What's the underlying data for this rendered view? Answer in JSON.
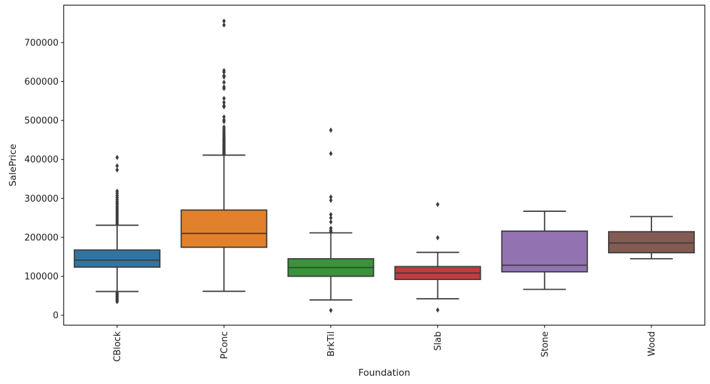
{
  "figure": {
    "background": "#ffffff"
  },
  "chart_data": {
    "type": "boxplot",
    "title": "",
    "xlabel": "Foundation",
    "ylabel": "SalePrice",
    "categories": [
      "CBlock",
      "PConc",
      "BrkTil",
      "Slab",
      "Stone",
      "Wood"
    ],
    "yticks": [
      0,
      100000,
      200000,
      300000,
      400000,
      500000,
      600000,
      700000
    ],
    "ylim": [
      -25400,
      795900
    ],
    "grid": false,
    "legend": "none",
    "colors": {
      "spine": "#2b2b2b",
      "box_edge": "#3d3d3d",
      "flier": "#3d3d3d",
      "text": "#1a1a1a",
      "background": "#ffffff"
    },
    "boxes": [
      {
        "category": "CBlock",
        "color": "#3274a1",
        "q1": 123500,
        "median": 141500,
        "q3": 167500,
        "whisker_low": 61000,
        "whisker_high": 231000,
        "outliers": [
          34900,
          37900,
          40500,
          43500,
          46500,
          49500,
          52500,
          55000,
          57500,
          235000,
          239000,
          243000,
          247000,
          251000,
          255000,
          259000,
          263000,
          267000,
          271000,
          275000,
          279000,
          284000,
          288000,
          292000,
          297000,
          302000,
          307000,
          313000,
          318500,
          373000,
          383500,
          405000
        ]
      },
      {
        "category": "PConc",
        "color": "#e1812c",
        "q1": 174500,
        "median": 210000,
        "q3": 270000,
        "whisker_low": 61500,
        "whisker_high": 411000,
        "outliers": [
          412500,
          415000,
          417500,
          420000,
          422500,
          425000,
          427500,
          430000,
          433000,
          436000,
          439000,
          442000,
          445000,
          448000,
          451000,
          454000,
          457500,
          461000,
          465000,
          469000,
          473500,
          478000,
          483000,
          497000,
          501000,
          509000,
          535000,
          538000,
          546000,
          556500,
          582000,
          586000,
          598000,
          611500,
          615000,
          624000,
          628000,
          745000,
          755000
        ]
      },
      {
        "category": "BrkTil",
        "color": "#3a923a",
        "q1": 100000,
        "median": 122500,
        "q3": 145000,
        "whisker_low": 39400,
        "whisker_high": 211500,
        "outliers": [
          12500,
          214000,
          218000,
          223500,
          239500,
          250000,
          258500,
          295000,
          303500,
          415000,
          475000
        ]
      },
      {
        "category": "Slab",
        "color": "#c03d3e",
        "q1": 92000,
        "median": 108500,
        "q3": 125000,
        "whisker_low": 42300,
        "whisker_high": 161500,
        "outliers": [
          13500,
          199000,
          284500
        ]
      },
      {
        "category": "Stone",
        "color": "#9372b2",
        "q1": 111500,
        "median": 128500,
        "q3": 216000,
        "whisker_low": 66500,
        "whisker_high": 267000,
        "outliers": []
      },
      {
        "category": "Wood",
        "color": "#845b53",
        "q1": 160500,
        "median": 185500,
        "q3": 214500,
        "whisker_low": 145000,
        "whisker_high": 253500,
        "outliers": []
      }
    ]
  }
}
